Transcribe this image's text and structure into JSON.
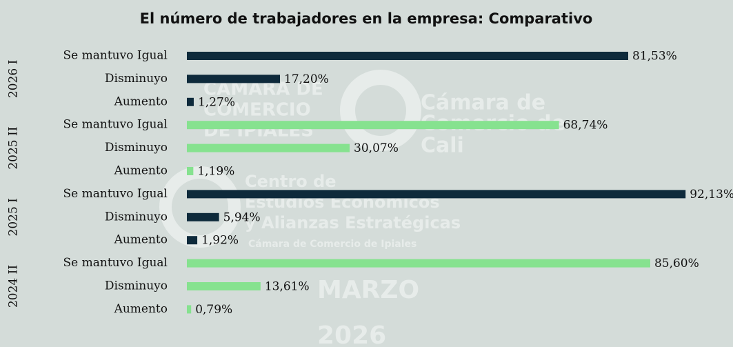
{
  "chart_data": {
    "type": "bar",
    "orientation": "horizontal",
    "title": "El número de trabajadores en la empresa: Comparativo",
    "categories": [
      "Se mantuvo Igual",
      "Disminuyo",
      "Aumento"
    ],
    "xlim": [
      0,
      100
    ],
    "series": [
      {
        "name": "2026 I",
        "color": "#0e2a3b",
        "values": [
          81.53,
          17.2,
          1.27
        ],
        "value_labels": [
          "81,53%",
          "17,20%",
          "1,27%"
        ]
      },
      {
        "name": "2025 II",
        "color": "#86e28f",
        "values": [
          68.74,
          30.07,
          1.19
        ],
        "value_labels": [
          "68,74%",
          "30,07%",
          "1,19%"
        ]
      },
      {
        "name": "2025 I",
        "color": "#0e2a3b",
        "values": [
          92.13,
          5.94,
          1.92
        ],
        "value_labels": [
          "92,13%",
          "5,94%",
          "1,92%"
        ]
      },
      {
        "name": "2024 II",
        "color": "#86e28f",
        "values": [
          85.6,
          13.61,
          0.79
        ],
        "value_labels": [
          "85,60%",
          "13,61%",
          "0,79%"
        ]
      }
    ],
    "watermarks": [
      "CÁMARA DE",
      "COMERCIO",
      "DE IPIALES",
      "Cámara de",
      "Comercio de",
      "Cali",
      "Centro de",
      "Estudios Económicos",
      "y Alianzas Estratégicas",
      "Cámara de Comercio de Ipiales",
      "MARZO",
      "2026"
    ]
  }
}
